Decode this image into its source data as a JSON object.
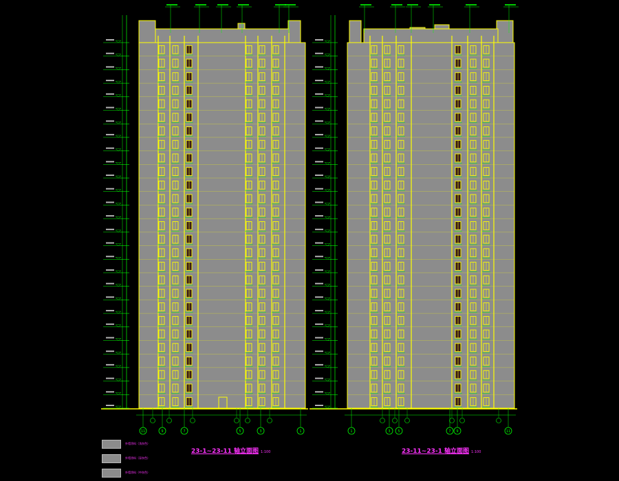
{
  "drawing": {
    "colors": {
      "background": "#000000",
      "facade": "#8c8c8c",
      "outline": "#ffff00",
      "dimension": "#00ff00",
      "annotation": "#ff33ff",
      "axis": "#00ff00",
      "window": "#ffff00",
      "window_dark": "#3a1a1a",
      "text": "#ffffff"
    },
    "floors": 27,
    "elevations": [
      {
        "id": "left",
        "title": "23-1~23-11 轴立面图",
        "scale": "1:100",
        "axis_labels": [
          "11",
          "9",
          "7",
          "5",
          "3",
          "1"
        ]
      },
      {
        "id": "right",
        "title": "23-11~23-1 轴立面图",
        "scale": "1:100",
        "axis_labels": [
          "1",
          "3",
          "5",
          "7",
          "9",
          "11"
        ]
      }
    ],
    "legend": [
      {
        "label": "外墙涂料（浅灰色）",
        "icon": "gray-swatch-icon"
      },
      {
        "label": "外墙涂料（深灰色）",
        "icon": "gray-swatch-icon"
      },
      {
        "label": "外墙涂料（中灰色）",
        "icon": "gray-swatch-icon"
      }
    ]
  }
}
